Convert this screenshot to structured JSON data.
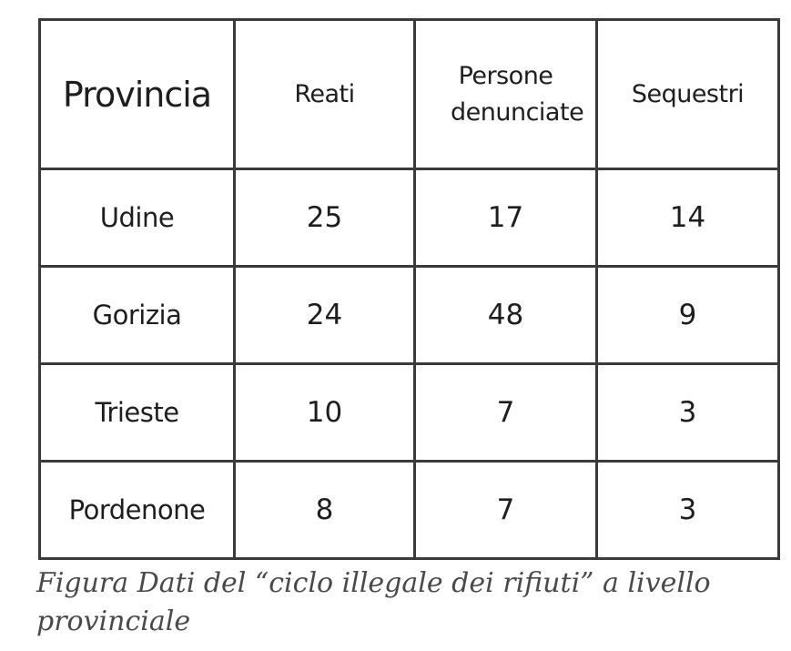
{
  "table": {
    "headers": [
      "Provincia",
      "Reati",
      "Persone denunciate",
      "Sequestri"
    ],
    "rows": [
      {
        "provincia": "Udine",
        "reati": "25",
        "persone": "17",
        "sequestri": "14"
      },
      {
        "provincia": "Gorizia",
        "reati": "24",
        "persone": "48",
        "sequestri": "9"
      },
      {
        "provincia": "Trieste",
        "reati": "10",
        "persone": "7",
        "sequestri": "3"
      },
      {
        "provincia": "Pordenone",
        "reati": "8",
        "persone": "7",
        "sequestri": "3"
      }
    ],
    "highlight_color": "#e2475f",
    "text_color": "#1e1e1e"
  },
  "caption": "Figura  Dati del “ciclo illegale dei rifiuti” a livello provinciale"
}
